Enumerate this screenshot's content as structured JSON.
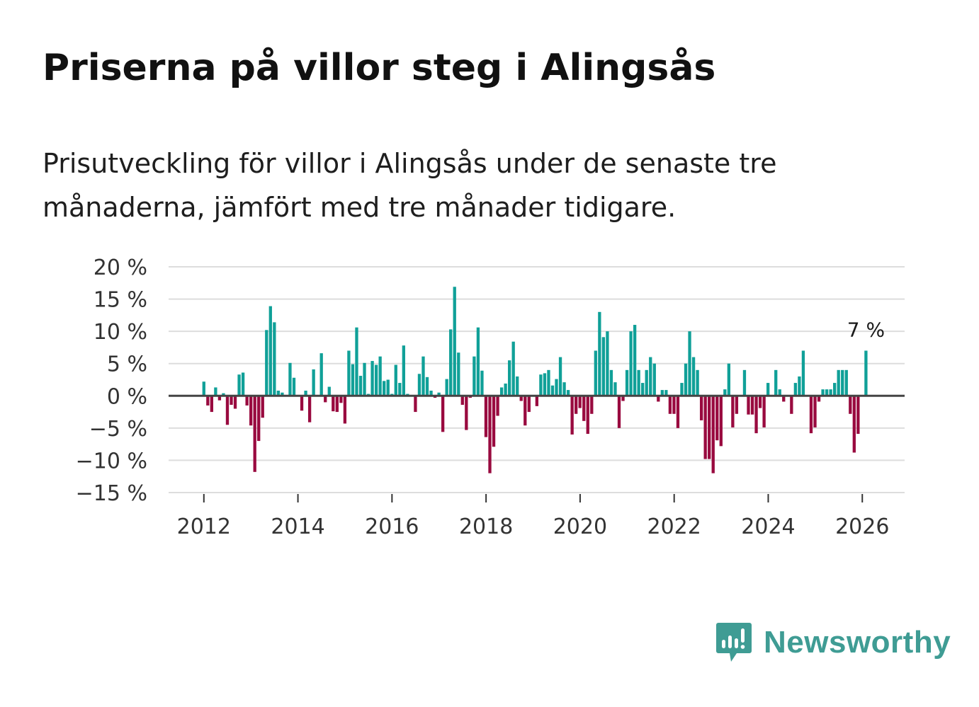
{
  "header": {
    "title": "Priserna på villor steg i Alingsås",
    "subtitle": "Prisutveckling för villor i Alingsås under de senaste tre månaderna, jämfört med tre månader tidigare."
  },
  "brand": {
    "name": "Newsworthy",
    "logo_icon": "bar-chart-speech-icon",
    "color": "#3f9c94"
  },
  "colors": {
    "positive": "#10a098",
    "negative": "#990a3f",
    "grid": "#dddddd",
    "zero_line": "#444444"
  },
  "chart_data": {
    "type": "bar",
    "title": "Priserna på villor steg i Alingsås",
    "subtitle": "Prisutveckling för villor i Alingsås under de senaste tre månaderna, jämfört med tre månader tidigare.",
    "xlabel": "",
    "ylabel": "",
    "x_start": 2012.0,
    "x_step": 0.0833,
    "xlim": [
      2011.25,
      2026.9
    ],
    "ylim": [
      -15,
      20
    ],
    "y_ticks": [
      20,
      15,
      10,
      5,
      0,
      -5,
      -10,
      -15
    ],
    "y_tick_labels": [
      "20 %",
      "15 %",
      "10 %",
      "5 %",
      "0 %",
      "−5 %",
      "−10 %",
      "−15 %"
    ],
    "x_ticks": [
      2012,
      2014,
      2016,
      2018,
      2020,
      2022,
      2024,
      2026
    ],
    "x_tick_labels": [
      "2012",
      "2014",
      "2016",
      "2018",
      "2020",
      "2022",
      "2024",
      "2026"
    ],
    "grid": true,
    "legend": "none",
    "annotation": {
      "label": "7 %",
      "target": "last-bar"
    },
    "values": [
      2.2,
      -1.5,
      -2.5,
      1.3,
      -0.7,
      0.4,
      -4.5,
      -1.4,
      -2.0,
      3.3,
      3.6,
      -1.5,
      -4.6,
      -11.8,
      -7.0,
      -3.4,
      10.2,
      13.9,
      11.4,
      0.8,
      0.5,
      0.0,
      5.1,
      2.8,
      0.0,
      -2.3,
      0.8,
      -4.1,
      4.1,
      0.0,
      6.6,
      -1.0,
      1.4,
      -2.4,
      -2.5,
      -1.1,
      -4.3,
      7.0,
      4.9,
      10.6,
      3.1,
      5.1,
      0.3,
      5.4,
      4.8,
      6.1,
      2.3,
      2.5,
      0.3,
      4.8,
      2.0,
      7.8,
      0.3,
      0.0,
      -2.5,
      3.4,
      6.1,
      2.9,
      0.8,
      -0.3,
      0.5,
      -5.6,
      2.6,
      10.3,
      16.9,
      6.7,
      -1.4,
      -5.3,
      -0.3,
      6.1,
      10.6,
      3.9,
      -6.4,
      -12.0,
      -7.9,
      -3.1,
      1.3,
      1.9,
      5.5,
      8.4,
      3.0,
      -0.8,
      -4.6,
      -2.5,
      0.0,
      -1.6,
      3.3,
      3.5,
      4.0,
      1.6,
      2.6,
      6.0,
      2.1,
      0.9,
      -6.0,
      -2.8,
      -1.9,
      -3.9,
      -5.9,
      -2.8,
      7.0,
      13.0,
      9.1,
      10.0,
      4.0,
      2.1,
      -5.0,
      -0.8,
      4.0,
      10.0,
      11.0,
      4.0,
      2.0,
      4.0,
      6.0,
      5.0,
      -0.9,
      0.9,
      0.9,
      -2.8,
      -2.8,
      -5.0,
      2.0,
      5.0,
      10.0,
      6.0,
      4.0,
      -3.8,
      -9.8,
      -9.8,
      -12.0,
      -6.9,
      -7.8,
      1.0,
      5.0,
      -4.9,
      -2.8,
      0.0,
      4.0,
      -2.9,
      -2.9,
      -5.8,
      -1.9,
      -4.9,
      2.0,
      0.0,
      4.0,
      1.0,
      -0.9,
      0.0,
      -2.8,
      2.0,
      3.0,
      7.0,
      0.0,
      -5.8,
      -4.9,
      -0.9,
      1.0,
      1.0,
      1.0,
      2.0,
      4.0,
      4.0,
      4.0,
      -2.8,
      -8.8,
      -5.9,
      0.0,
      7.0
    ]
  }
}
